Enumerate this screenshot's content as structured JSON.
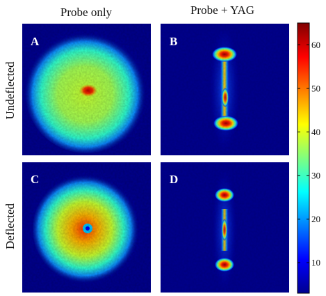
{
  "figure": {
    "column_titles": [
      "Probe only",
      "Probe + YAG"
    ],
    "row_titles": [
      "Undeflected",
      "Deflected"
    ],
    "panels": [
      {
        "letter": "A",
        "pattern": "disk-uniform"
      },
      {
        "letter": "B",
        "pattern": "vertical-line-lobes"
      },
      {
        "letter": "C",
        "pattern": "disk-hot-core"
      },
      {
        "letter": "D",
        "pattern": "vertical-line-lobes-narrow"
      }
    ]
  },
  "chart_data": {
    "type": "heatmap",
    "title": "",
    "xlabel": "",
    "ylabel": "",
    "colorbar": {
      "colormap": "jet",
      "range": [
        3,
        65
      ],
      "ticks": [
        10,
        20,
        30,
        40,
        50,
        60
      ],
      "tick_labels": [
        "10",
        "20",
        "30",
        "40",
        "50",
        "60"
      ]
    },
    "background_color": "#00008f"
  }
}
